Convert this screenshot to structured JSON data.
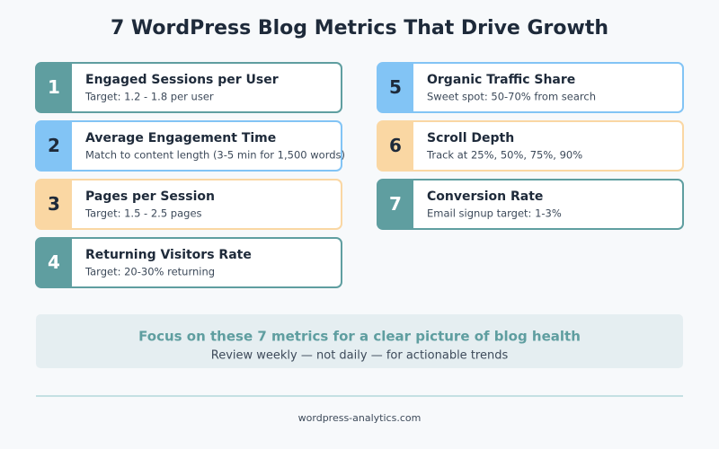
{
  "header": {
    "title": "7 WordPress Blog Metrics That Drive Growth"
  },
  "metrics": [
    {
      "number": "1",
      "title": "Engaged Sessions per User",
      "description": "Target: 1.2 - 1.8 per user",
      "color": "#5f9ea0"
    },
    {
      "number": "2",
      "title": "Average Engagement Time",
      "description": "Match to content length (3-5 min for 1,500 words)",
      "color": "#82c4f5"
    },
    {
      "number": "3",
      "title": "Pages per Session",
      "description": "Target: 1.5 - 2.5 pages",
      "color": "#fad7a3"
    },
    {
      "number": "4",
      "title": "Returning Visitors Rate",
      "description": "Target: 20-30% returning",
      "color": "#5f9ea0"
    },
    {
      "number": "5",
      "title": "Organic Traffic Share",
      "description": "Sweet spot: 50-70% from search",
      "color": "#82c4f5"
    },
    {
      "number": "6",
      "title": "Scroll Depth",
      "description": "Track at 25%, 50%, 75%, 90%",
      "color": "#fad7a3"
    },
    {
      "number": "7",
      "title": "Conversion Rate",
      "description": "Email signup target: 1-3%",
      "color": "#5f9ea0"
    }
  ],
  "summary": {
    "headline": "Focus on these 7 metrics for a clear picture of blog health",
    "subline": "Review weekly — not daily — for actionable trends"
  },
  "footer": {
    "source": "wordpress-analytics.com"
  }
}
